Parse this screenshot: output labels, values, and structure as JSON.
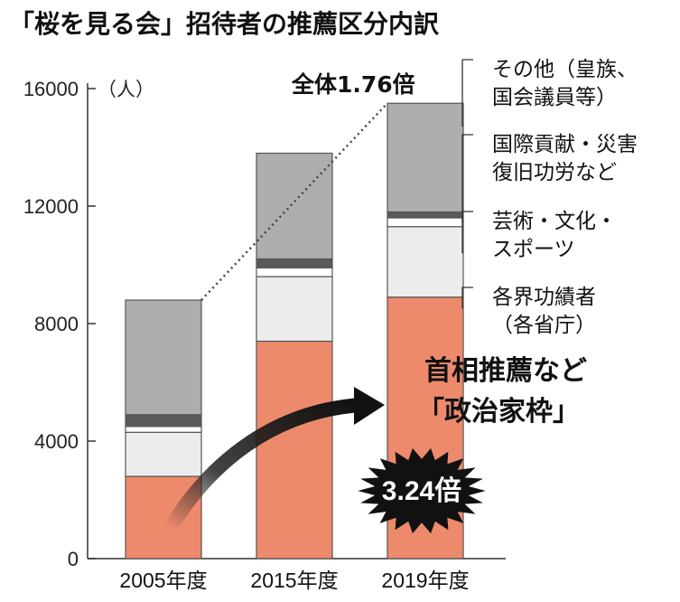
{
  "title": "「桜を見る会」招待者の推薦区分内訳",
  "chart_data": {
    "type": "bar",
    "stacked": true,
    "unit_label": "（人）",
    "categories": [
      "2005年度",
      "2015年度",
      "2019年度"
    ],
    "yticks": [
      "0",
      "4000",
      "8000",
      "12000",
      "16000"
    ],
    "ylim": [
      0,
      16000
    ],
    "series": [
      {
        "name": "各界功績者（各省庁）",
        "legend_lines": [
          "各界功績者",
          "（各省庁）"
        ],
        "color": "#ee8a6c",
        "values": [
          2800,
          7400,
          8900
        ]
      },
      {
        "name": "芸術・文化・スポーツ",
        "legend_lines": [
          "芸術・文化・",
          "スポーツ"
        ],
        "color": "#ececec",
        "values": [
          1500,
          2200,
          2400
        ]
      },
      {
        "name": "国際貢献・災害復旧功労など",
        "legend_lines": [
          "国際貢献・災害",
          "復旧功労など"
        ],
        "color": "#ffffff",
        "values": [
          200,
          300,
          300
        ]
      },
      {
        "name": "",
        "color": "#5a5a5a",
        "values": [
          400,
          300,
          200
        ]
      },
      {
        "name": "その他（皇族、国会議員等）",
        "legend_lines": [
          "その他（皇族、",
          "国会議員等）"
        ],
        "color": "#aeaeae",
        "values": [
          3900,
          3600,
          3700
        ]
      }
    ],
    "annotations": {
      "total_ratio": "全体1.76倍",
      "callout_lines": [
        "首相推薦など",
        "「政治家枠」"
      ],
      "burst": "3.24倍"
    }
  }
}
